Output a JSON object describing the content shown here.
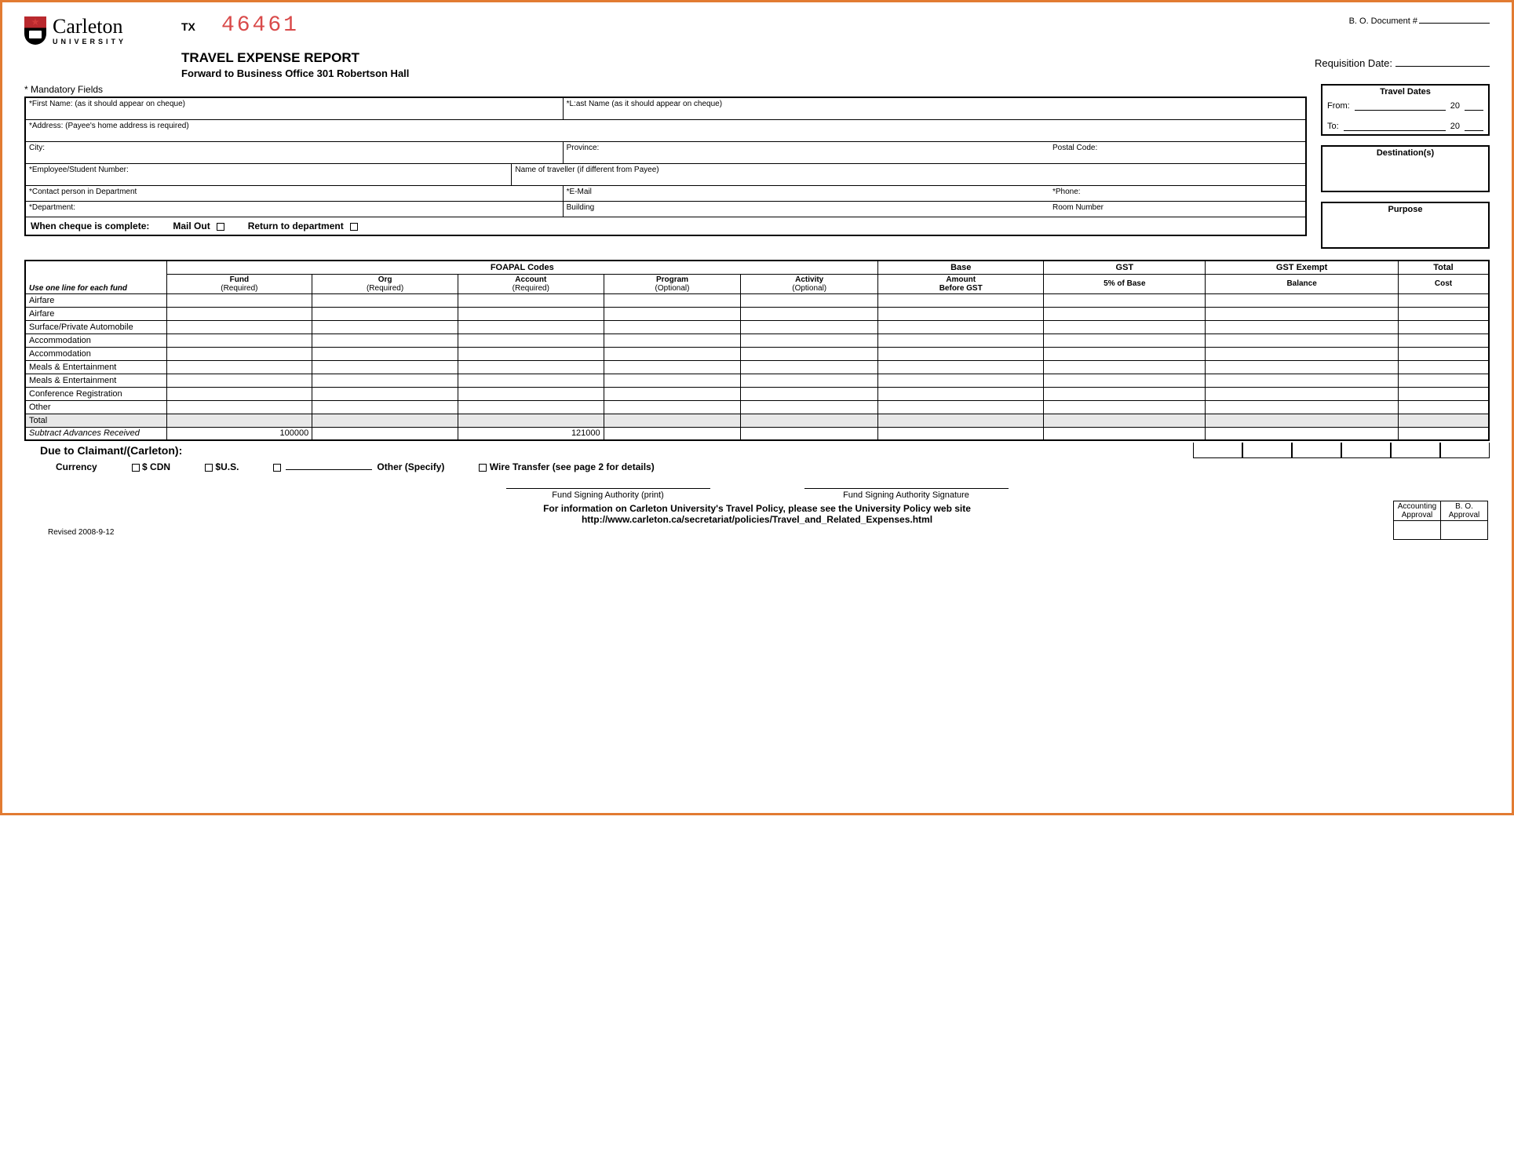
{
  "university": {
    "name": "Carleton",
    "sub": "UNIVERSITY"
  },
  "tx": {
    "label": "TX",
    "number": "46461"
  },
  "bo_doc": "B. O. Document #",
  "title": "TRAVEL EXPENSE REPORT",
  "forward": "Forward to Business Office 301 Robertson Hall",
  "req_date": "Requisition Date:",
  "mandatory": "* Mandatory Fields",
  "fields": {
    "first_name": "*First Name: (as it should appear on cheque)",
    "last_name": "*L:ast Name (as it should appear on cheque)",
    "address": "*Address: (Payee's home address is required)",
    "city": "City:",
    "province": "Province:",
    "postal": "Postal Code:",
    "emp_num": "*Employee/Student Number:",
    "traveller": "Name of traveller (if different from Payee)",
    "contact": "*Contact person in Department",
    "email": "*E-Mail",
    "phone": "*Phone:",
    "dept": "*Department:",
    "building": "Building",
    "room": "Room Number"
  },
  "cheque": {
    "label": "When cheque is complete:",
    "mail": "Mail Out",
    "ret": "Return to department"
  },
  "travel_dates": {
    "title": "Travel Dates",
    "from": "From:",
    "to": "To:",
    "yr": "20"
  },
  "destinations": "Destination(s)",
  "purpose": "Purpose",
  "table": {
    "foapal": "FOAPAL Codes",
    "fund": "Fund",
    "org": "Org",
    "account": "Account",
    "program": "Program",
    "activity": "Activity",
    "required": "(Required)",
    "optional": "(Optional)",
    "base": "Base Amount Before GST",
    "base1": "Base",
    "base2": "Amount",
    "base3": "Before GST",
    "gst": "GST",
    "gst2": "5% of Base",
    "gst_exempt": "GST Exempt",
    "balance": "Balance",
    "total_cost": "Total Cost",
    "total_cost1": "Total",
    "total_cost2": "Cost",
    "use_one": "Use one line for each fund",
    "rows": [
      "Airfare",
      "Airfare",
      "Surface/Private Automobile",
      "Accommodation",
      "Accommodation",
      "Meals & Entertainment",
      "Meals & Entertainment",
      "Conference Registration",
      "Other"
    ],
    "total": "Total",
    "subtract": "Subtract Advances Received",
    "sub_fund": "100000",
    "sub_account": "121000"
  },
  "due": "Due to Claimant/(Carleton):",
  "currency": {
    "label": "Currency",
    "cdn": "$ CDN",
    "us": "$U.S.",
    "other": "Other (Specify)",
    "wire": "Wire Transfer (see page 2 for details)"
  },
  "sig": {
    "print": "Fund Signing Authority (print)",
    "signature": "Fund Signing Authority Signature"
  },
  "footer": "For information on Carleton University's Travel Policy, please see the University Policy web site",
  "url": "http://www.carleton.ca/secretariat/policies/Travel_and_Related_Expenses.html",
  "revised": "Revised 2008-9-12",
  "approval": {
    "acct1": "Accounting",
    "acct2": "Approval",
    "bo1": "B. O.",
    "bo2": "Approval"
  },
  "colors": {
    "frame_border": "#e27b32",
    "tx_number": "#d94a4a",
    "total_row_bg": "#e8e8e8"
  }
}
